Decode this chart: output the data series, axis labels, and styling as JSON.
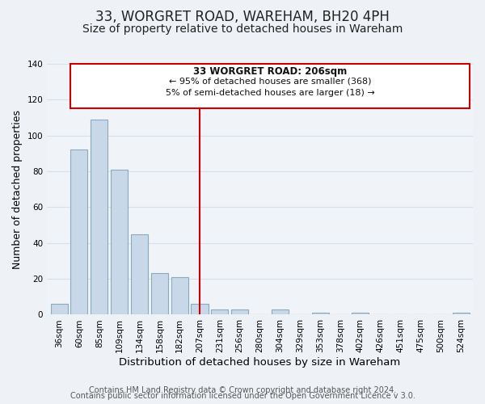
{
  "title": "33, WORGRET ROAD, WAREHAM, BH20 4PH",
  "subtitle": "Size of property relative to detached houses in Wareham",
  "xlabel": "Distribution of detached houses by size in Wareham",
  "ylabel": "Number of detached properties",
  "bar_labels": [
    "36sqm",
    "60sqm",
    "85sqm",
    "109sqm",
    "134sqm",
    "158sqm",
    "182sqm",
    "207sqm",
    "231sqm",
    "256sqm",
    "280sqm",
    "304sqm",
    "329sqm",
    "353sqm",
    "378sqm",
    "402sqm",
    "426sqm",
    "451sqm",
    "475sqm",
    "500sqm",
    "524sqm"
  ],
  "bar_values": [
    6,
    92,
    109,
    81,
    45,
    23,
    21,
    6,
    3,
    3,
    0,
    3,
    0,
    1,
    0,
    1,
    0,
    0,
    0,
    0,
    1
  ],
  "bar_color": "#c8d8e8",
  "bar_edge_color": "#8aaabf",
  "vline_x_idx": 7,
  "vline_color": "#cc0000",
  "ylim": [
    0,
    140
  ],
  "yticks": [
    0,
    20,
    40,
    60,
    80,
    100,
    120,
    140
  ],
  "annotation_title": "33 WORGRET ROAD: 206sqm",
  "annotation_line1": "← 95% of detached houses are smaller (368)",
  "annotation_line2": "5% of semi-detached houses are larger (18) →",
  "annotation_box_color": "#ffffff",
  "annotation_box_edge": "#cc0000",
  "footer_line1": "Contains HM Land Registry data © Crown copyright and database right 2024.",
  "footer_line2": "Contains public sector information licensed under the Open Government Licence v 3.0.",
  "background_color": "#eef2f6",
  "plot_background_color": "#f0f4f8",
  "grid_color": "#d8e0e8",
  "title_fontsize": 12,
  "subtitle_fontsize": 10,
  "xlabel_fontsize": 9.5,
  "ylabel_fontsize": 9,
  "tick_fontsize": 7.5,
  "footer_fontsize": 7
}
